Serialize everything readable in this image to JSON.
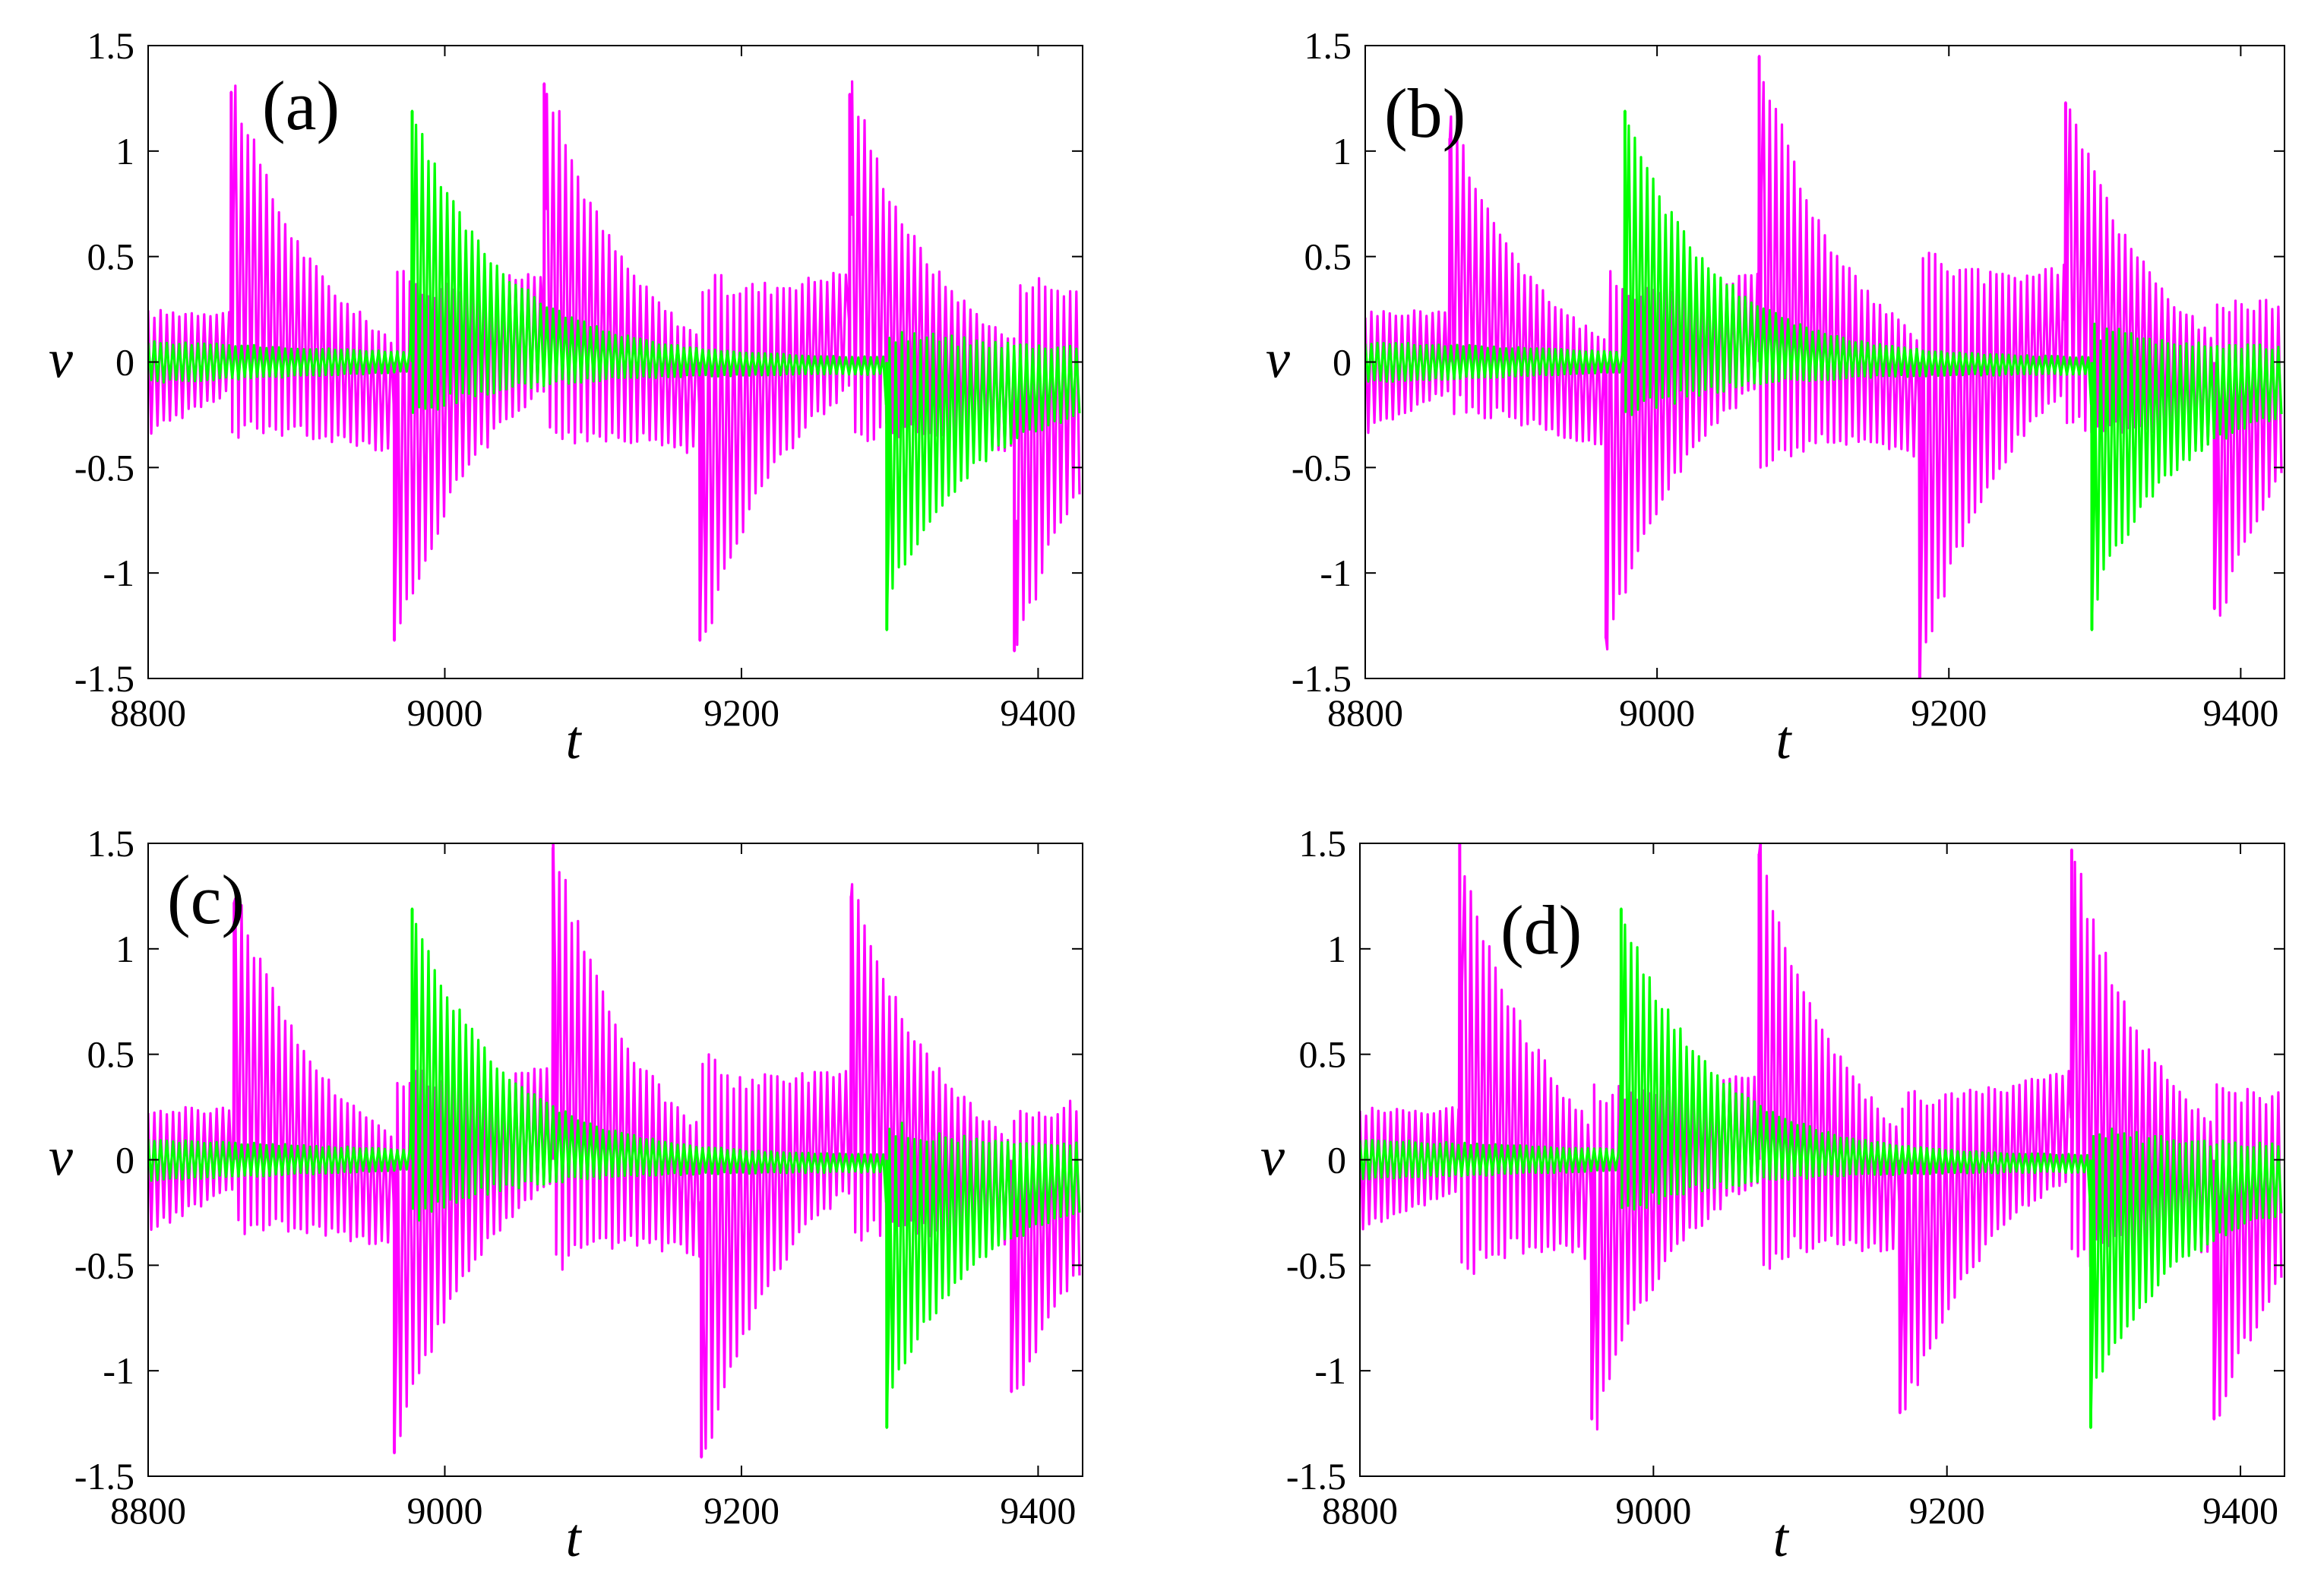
{
  "chart_data": [
    {
      "type": "line",
      "panel_label": "(a)",
      "xlabel": "t",
      "ylabel": "v",
      "xlim": [
        8800,
        9430
      ],
      "ylim": [
        -1.5,
        1.5
      ],
      "xticks": [
        "8800",
        "9000",
        "9200",
        "9400"
      ],
      "yticks": [
        "1.5",
        "1",
        "0.5",
        "0",
        "-0.5",
        "-1",
        "-1.5"
      ],
      "series": [
        {
          "name": "magenta",
          "color": "#ff00ff",
          "spike_times": [
            8856,
            8966,
            9067,
            9172,
            9273,
            9384
          ],
          "spike_peaks": [
            1.28,
            -1.32,
            1.32,
            -1.32,
            1.27,
            -1.37
          ]
        },
        {
          "name": "green",
          "color": "#00ff00",
          "spike_times": [
            8978,
            9298
          ],
          "spike_peaks": [
            1.19,
            -1.27
          ]
        }
      ]
    },
    {
      "type": "line",
      "panel_label": "(b)",
      "xlabel": "t",
      "ylabel": "v",
      "xlim": [
        8800,
        9430
      ],
      "ylim": [
        -1.5,
        1.5
      ],
      "xticks": [
        "8800",
        "9000",
        "9200",
        "9400"
      ],
      "yticks": [
        "1.5",
        "1",
        "0.5",
        "0",
        "-0.5",
        "-1",
        "-1.5"
      ],
      "series": [
        {
          "name": "magenta",
          "color": "#ff00ff",
          "spike_times": [
            8858,
            8965,
            9070,
            9180,
            9280,
            9382
          ],
          "spike_peaks": [
            1.06,
            -1.31,
            1.45,
            -1.5,
            1.23,
            -1.17
          ]
        },
        {
          "name": "green",
          "color": "#00ff00",
          "spike_times": [
            8978,
            9298
          ],
          "spike_peaks": [
            1.19,
            -1.27
          ]
        }
      ]
    },
    {
      "type": "line",
      "panel_label": "(c)",
      "xlabel": "t",
      "ylabel": "v",
      "xlim": [
        8800,
        9430
      ],
      "ylim": [
        -1.5,
        1.5
      ],
      "xticks": [
        "8800",
        "9000",
        "9200",
        "9400"
      ],
      "yticks": [
        "1.5",
        "1",
        "0.5",
        "0",
        "-0.5",
        "-1",
        "-1.5"
      ],
      "series": [
        {
          "name": "magenta",
          "color": "#ff00ff",
          "spike_times": [
            8858,
            8966,
            9073,
            9173,
            9274,
            9382
          ],
          "spike_peaks": [
            1.22,
            -1.39,
            1.48,
            -1.41,
            1.25,
            -1.1
          ]
        },
        {
          "name": "green",
          "color": "#00ff00",
          "spike_times": [
            8978,
            9298
          ],
          "spike_peaks": [
            1.19,
            -1.27
          ]
        }
      ]
    },
    {
      "type": "line",
      "panel_label": "(d)",
      "xlabel": "t",
      "ylabel": "v",
      "xlim": [
        8800,
        9430
      ],
      "ylim": [
        -1.5,
        1.5
      ],
      "xticks": [
        "8800",
        "9000",
        "9200",
        "9400"
      ],
      "yticks": [
        "1.5",
        "1",
        "0.5",
        "0",
        "-0.5",
        "-1",
        "-1.5"
      ],
      "series": [
        {
          "name": "magenta",
          "color": "#ff00ff",
          "spike_times": [
            8868,
            8958,
            9072,
            9168,
            9285,
            9382
          ],
          "spike_peaks": [
            1.5,
            -1.23,
            1.45,
            -1.2,
            1.47,
            -1.23
          ]
        },
        {
          "name": "green",
          "color": "#00ff00",
          "spike_times": [
            8978,
            9298
          ],
          "spike_peaks": [
            1.19,
            -1.27
          ]
        }
      ]
    }
  ]
}
